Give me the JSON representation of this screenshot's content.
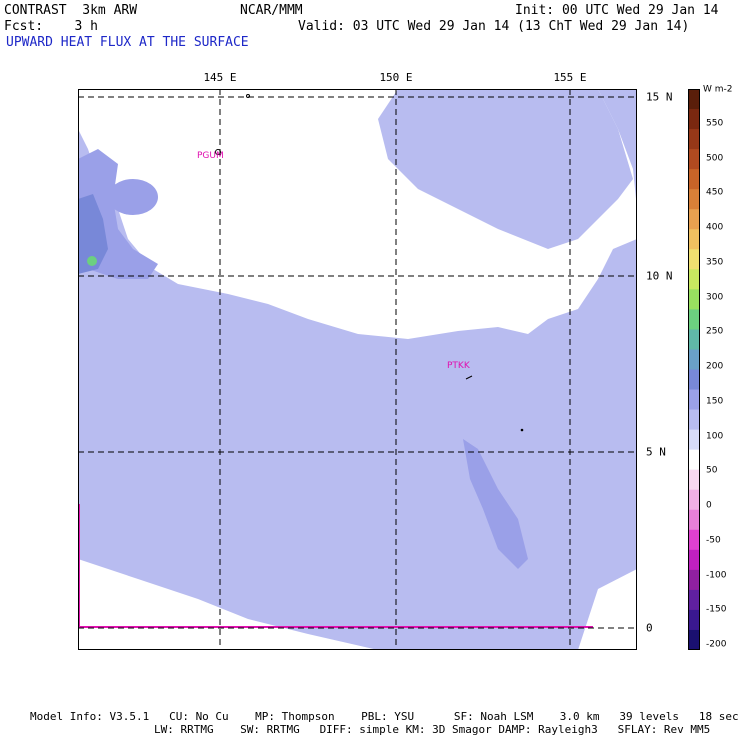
{
  "header": {
    "model": "CONTRAST  3km ARW",
    "org": "NCAR/MMM",
    "init": "Init: 00 UTC Wed 29 Jan 14",
    "fcst": "Fcst:    3 h",
    "valid": "Valid: 03 UTC Wed 29 Jan 14 (13 ChT Wed 29 Jan 14)",
    "field_title": "UPWARD HEAT FLUX AT THE SURFACE"
  },
  "axes": {
    "lon_labels": [
      "145 E",
      "150 E",
      "155 E"
    ],
    "lat_labels": [
      "15 N",
      "10 N",
      "5 N",
      "0"
    ]
  },
  "stations": [
    "PGUM",
    "PTKK"
  ],
  "colorbar": {
    "unit": "W m-2",
    "labels": [
      "550",
      "500",
      "450",
      "400",
      "350",
      "300",
      "250",
      "200",
      "150",
      "100",
      "50",
      "0",
      "-50",
      "-100",
      "-150",
      "-200"
    ],
    "colors": [
      "#5a1e0a",
      "#7a2810",
      "#963818",
      "#b04a20",
      "#c86428",
      "#d88038",
      "#e8a050",
      "#f0c060",
      "#f0e070",
      "#c8e860",
      "#98e060",
      "#6cd080",
      "#60b8a8",
      "#6aa0c8",
      "#7888d8",
      "#9aa0e8",
      "#b8bcf0",
      "#d8dcf8",
      "#ffffff",
      "#f8d8f0",
      "#f0b0e4",
      "#e880d8",
      "#e040d0",
      "#c020c0",
      "#9020a0",
      "#6020a0",
      "#3a1890",
      "#1a1070"
    ]
  },
  "map_colors": {
    "ocean_fill": "#b8bcf0",
    "low_flux": "#ffffff",
    "mid_flux": "#9aa0e8",
    "high_flux": "#7888d8",
    "peak_flux": "#6cd080",
    "negative_flux": "#e010b0",
    "grid": "#000000"
  },
  "footer": {
    "line1": "Model Info: V3.5.1   CU: No Cu    MP: Thompson    PBL: YSU      SF: Noah LSM    3.0 km   39 levels   18 sec",
    "line2": "LW: RRTMG    SW: RRTMG   DIFF: simple KM: 3D Smagor DAMP: Rayleigh3   SFLAY: Rev MM5"
  }
}
